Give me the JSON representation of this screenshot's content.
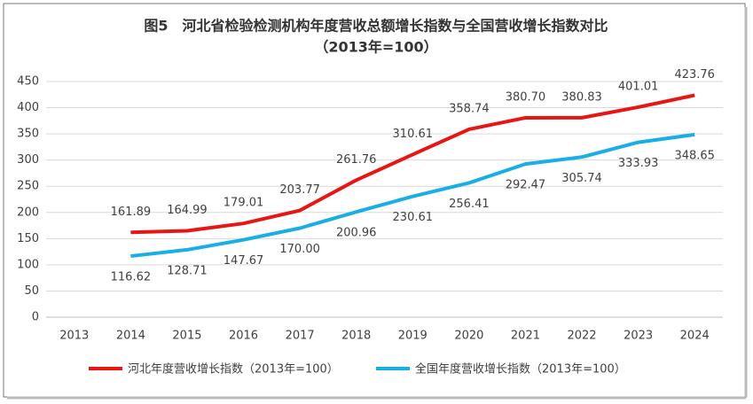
{
  "chart_data": {
    "type": "line",
    "title": "图5　河北省检验检测机构年度营收总额增长指数与全国营收增长指数对比",
    "subtitle": "（2013年=100）",
    "categories": [
      "2013",
      "2014",
      "2015",
      "2016",
      "2017",
      "2018",
      "2019",
      "2020",
      "2021",
      "2022",
      "2023",
      "2024"
    ],
    "series": [
      {
        "name": "河北年度营收增长指数（2013年=100）",
        "color": "#e81515",
        "values": [
          null,
          161.89,
          164.99,
          179.01,
          203.77,
          261.76,
          310.61,
          358.74,
          380.7,
          380.83,
          401.01,
          423.76
        ],
        "value_labels": [
          null,
          "161.89",
          "164.99",
          "179.01",
          "203.77",
          "261.76",
          "310.61",
          "358.74",
          "380.70",
          "380.83",
          "401.01",
          "423.76"
        ]
      },
      {
        "name": "全国年度营收增长指数（2013年=100）",
        "color": "#1aaee6",
        "values": [
          null,
          116.62,
          128.71,
          147.67,
          170,
          200.96,
          230.61,
          256.41,
          292.47,
          305.74,
          333.93,
          348.65
        ],
        "value_labels": [
          null,
          "116.62",
          "128.71",
          "147.67",
          "170.00",
          "200.96",
          "230.61",
          "256.41",
          "292.47",
          "305.74",
          "333.93",
          "348.65"
        ]
      }
    ],
    "ylim": [
      0,
      450
    ],
    "yticks": [
      0,
      50,
      100,
      150,
      200,
      250,
      300,
      350,
      400,
      450
    ],
    "grid": true,
    "legend": "bottom"
  }
}
